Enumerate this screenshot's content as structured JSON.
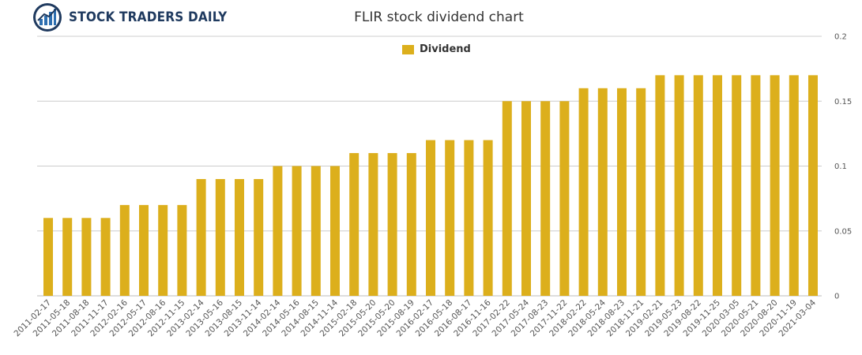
{
  "header": {
    "logo_text": "STOCK TRADERS DAILY",
    "logo_icon": "bar-chart-globe-icon"
  },
  "chart_data": {
    "type": "bar",
    "title": "FLIR stock dividend chart",
    "xlabel": "",
    "ylabel": "",
    "ylim": [
      0,
      0.2
    ],
    "yticks": [
      0,
      0.05,
      0.1,
      0.15,
      0.2
    ],
    "ytick_labels": [
      "0",
      "0.05",
      "0.1",
      "0.15",
      "0.2"
    ],
    "grid": true,
    "legend_position": "top-center",
    "bar_color": "#dcaf1c",
    "categories": [
      "2011-02-17",
      "2011-05-18",
      "2011-08-18",
      "2011-11-17",
      "2012-02-16",
      "2012-05-17",
      "2012-08-16",
      "2012-11-15",
      "2013-02-14",
      "2013-05-16",
      "2013-08-15",
      "2013-11-14",
      "2014-02-14",
      "2014-05-16",
      "2014-08-15",
      "2014-11-14",
      "2015-02-18",
      "2015-05-20",
      "2015-05-20",
      "2015-08-19",
      "2016-02-17",
      "2016-05-18",
      "2016-08-17",
      "2016-11-16",
      "2017-02-22",
      "2017-05-24",
      "2017-08-23",
      "2017-11-22",
      "2018-02-22",
      "2018-05-24",
      "2018-08-23",
      "2018-11-21",
      "2019-02-21",
      "2019-05-23",
      "2019-08-22",
      "2019-11-25",
      "2020-03-05",
      "2020-05-21",
      "2020-08-20",
      "2020-11-19",
      "2021-03-04"
    ],
    "series": [
      {
        "name": "Dividend",
        "values": [
          0.06,
          0.06,
          0.06,
          0.06,
          0.07,
          0.07,
          0.07,
          0.07,
          0.09,
          0.09,
          0.09,
          0.09,
          0.1,
          0.1,
          0.1,
          0.1,
          0.11,
          0.11,
          0.11,
          0.11,
          0.12,
          0.12,
          0.12,
          0.12,
          0.15,
          0.15,
          0.15,
          0.15,
          0.16,
          0.16,
          0.16,
          0.16,
          0.17,
          0.17,
          0.17,
          0.17,
          0.17,
          0.17,
          0.17,
          0.17,
          0.17
        ]
      }
    ]
  }
}
